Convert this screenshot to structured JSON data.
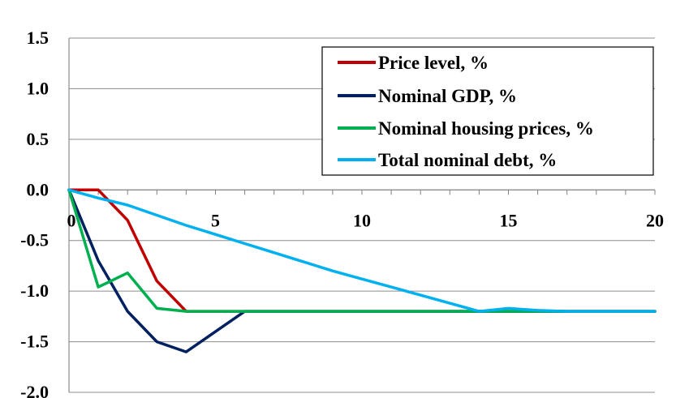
{
  "chart_data": {
    "type": "line",
    "title": "",
    "xlabel": "",
    "ylabel": "",
    "xlim": [
      0,
      20
    ],
    "ylim": [
      -2.0,
      1.5
    ],
    "x_ticks": [
      "0",
      "5",
      "10",
      "15",
      "20"
    ],
    "y_ticks": [
      "1.5",
      "1.0",
      "0.5",
      "0.0",
      "-0.5",
      "-1.0",
      "-1.5",
      "-2.0"
    ],
    "grid": "horizontal",
    "legend_position": "top-right",
    "series": [
      {
        "name": "Price level, %",
        "color": "#C00000",
        "x": [
          0,
          1,
          2,
          3,
          4,
          5,
          6,
          7,
          8,
          9,
          10,
          11,
          12,
          13,
          14,
          15,
          16,
          17,
          18,
          19,
          20
        ],
        "values": [
          0,
          0,
          -0.3,
          -0.9,
          -1.2,
          -1.2,
          -1.2,
          -1.2,
          -1.2,
          -1.2,
          -1.2,
          -1.2,
          -1.2,
          -1.2,
          -1.2,
          -1.2,
          -1.2,
          -1.2,
          -1.2,
          -1.2,
          -1.2
        ]
      },
      {
        "name": "Nominal GDP, %",
        "color": "#002060",
        "x": [
          0,
          1,
          2,
          3,
          4,
          5,
          6,
          7,
          8,
          9,
          10,
          11,
          12,
          13,
          14,
          15,
          16,
          17,
          18,
          19,
          20
        ],
        "values": [
          0,
          -0.7,
          -1.2,
          -1.5,
          -1.6,
          -1.4,
          -1.2,
          -1.2,
          -1.2,
          -1.2,
          -1.2,
          -1.2,
          -1.2,
          -1.2,
          -1.2,
          -1.2,
          -1.2,
          -1.2,
          -1.2,
          -1.2,
          -1.2
        ]
      },
      {
        "name": "Nominal housing prices, %",
        "color": "#00B050",
        "x": [
          0,
          1,
          2,
          3,
          4,
          5,
          6,
          7,
          8,
          9,
          10,
          11,
          12,
          13,
          14,
          15,
          16,
          17,
          18,
          19,
          20
        ],
        "values": [
          0,
          -0.96,
          -0.82,
          -1.17,
          -1.2,
          -1.2,
          -1.2,
          -1.2,
          -1.2,
          -1.2,
          -1.2,
          -1.2,
          -1.2,
          -1.2,
          -1.2,
          -1.2,
          -1.2,
          -1.2,
          -1.2,
          -1.2,
          -1.2
        ]
      },
      {
        "name": "Total nominal debt, %",
        "color": "#00B0F0",
        "x": [
          0,
          1,
          2,
          3,
          4,
          5,
          6,
          7,
          8,
          9,
          10,
          11,
          12,
          13,
          14,
          15,
          16,
          17,
          18,
          19,
          20
        ],
        "values": [
          0,
          -0.08,
          -0.15,
          -0.25,
          -0.35,
          -0.44,
          -0.53,
          -0.62,
          -0.71,
          -0.8,
          -0.88,
          -0.96,
          -1.04,
          -1.12,
          -1.2,
          -1.17,
          -1.19,
          -1.2,
          -1.2,
          -1.2,
          -1.2
        ]
      }
    ]
  }
}
